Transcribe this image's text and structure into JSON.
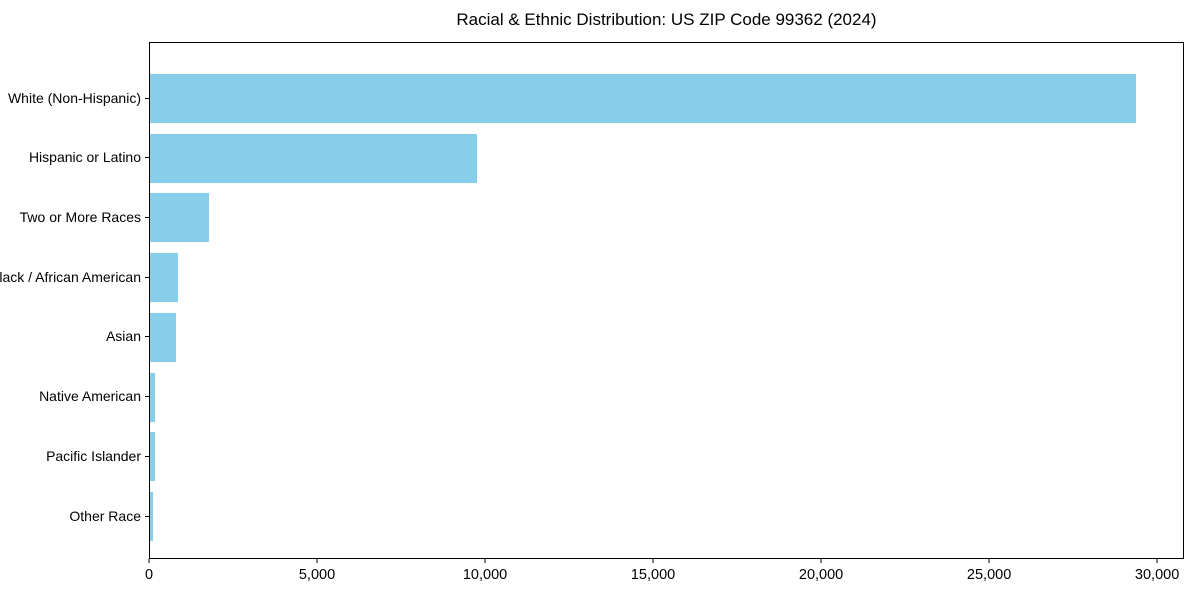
{
  "chart_data": {
    "type": "bar",
    "orientation": "horizontal",
    "title": "Racial & Ethnic Distribution: US ZIP Code 99362 (2024)",
    "categories": [
      "White (Non-Hispanic)",
      "Hispanic or Latino",
      "Two or More Races",
      "Black / African American",
      "Asian",
      "Native American",
      "Pacific Islander",
      "Other Race"
    ],
    "values": [
      29400,
      9760,
      1760,
      830,
      780,
      150,
      140,
      90
    ],
    "xlabel": "",
    "ylabel": "",
    "xlim": [
      0,
      30800
    ],
    "xticks": [
      0,
      5000,
      10000,
      15000,
      20000,
      25000,
      30000
    ],
    "xticklabels": [
      "0",
      "5,000",
      "10,000",
      "15,000",
      "20,000",
      "25,000",
      "30,000"
    ],
    "bar_color": "#87CEEB",
    "text_color": "#000000",
    "grid": false,
    "legend_position": "none"
  }
}
